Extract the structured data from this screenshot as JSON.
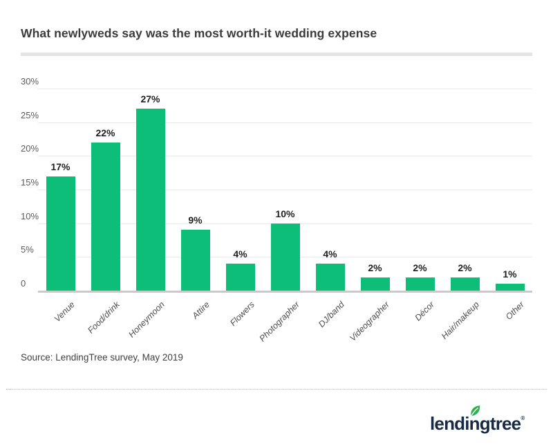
{
  "header": {
    "title": "What newlyweds say was the most worth-it wedding expense"
  },
  "chart_data": {
    "type": "bar",
    "title": "What newlyweds say was the most worth-it wedding expense",
    "categories": [
      "Venue",
      "Food/drink",
      "Honeymoon",
      "Attire",
      "Flowers",
      "Photographer",
      "DJ/band",
      "Videographer",
      "Décor",
      "Hair/makeup",
      "Other"
    ],
    "values": [
      17,
      22,
      27,
      9,
      4,
      10,
      4,
      2,
      2,
      2,
      1
    ],
    "value_labels": [
      "17%",
      "22%",
      "27%",
      "9%",
      "4%",
      "10%",
      "4%",
      "2%",
      "2%",
      "2%",
      "1%"
    ],
    "y_ticks": [
      0,
      5,
      10,
      15,
      20,
      25,
      30
    ],
    "y_tick_labels": [
      "0",
      "5%",
      "10%",
      "15%",
      "20%",
      "25%",
      "30%"
    ],
    "ylim": [
      0,
      30
    ],
    "xlabel": "",
    "ylabel": "",
    "grid": true,
    "legend": false,
    "bar_color": "#0cbe78",
    "gridline_color": "#e9e9e9",
    "axis_line_color": "#c9c9c9"
  },
  "footer": {
    "source": "Source: LendingTree survey, May 2019"
  },
  "logo": {
    "text": "lendingtree",
    "registered": "®",
    "text_color": "#182a43",
    "leaf_color": "#2bb24c"
  }
}
